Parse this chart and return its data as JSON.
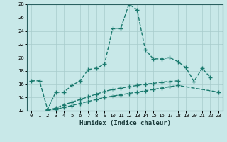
{
  "xlabel": "Humidex (Indice chaleur)",
  "background_color": "#c8e8e8",
  "line_color": "#1a7a6e",
  "xlim": [
    -0.5,
    23.5
  ],
  "ylim": [
    12,
    28
  ],
  "xticks": [
    0,
    1,
    2,
    3,
    4,
    5,
    6,
    7,
    8,
    9,
    10,
    11,
    12,
    13,
    14,
    15,
    16,
    17,
    18,
    19,
    20,
    21,
    22,
    23
  ],
  "yticks": [
    12,
    14,
    16,
    18,
    20,
    22,
    24,
    26,
    28
  ],
  "series1_x": [
    0,
    1,
    2,
    3,
    4,
    5,
    6,
    7,
    8,
    9,
    10,
    11,
    12,
    13,
    14,
    15,
    16,
    17,
    18,
    19,
    20,
    21,
    22
  ],
  "series1_y": [
    16.5,
    16.5,
    12.2,
    14.8,
    14.8,
    15.8,
    16.5,
    18.2,
    18.4,
    19.0,
    24.4,
    24.4,
    28.0,
    27.2,
    21.2,
    19.8,
    19.8,
    20.0,
    19.4,
    18.5,
    16.4,
    18.4,
    17.0
  ],
  "series2_x": [
    2,
    3,
    4,
    5,
    6,
    7,
    8,
    9,
    10,
    11,
    12,
    13,
    14,
    15,
    16,
    17,
    18,
    23
  ],
  "series2_y": [
    12.1,
    12.2,
    12.5,
    12.8,
    13.1,
    13.4,
    13.7,
    14.0,
    14.2,
    14.4,
    14.6,
    14.8,
    15.0,
    15.2,
    15.4,
    15.6,
    15.8,
    14.8
  ],
  "series3_x": [
    2,
    3,
    4,
    5,
    6,
    7,
    8,
    9,
    10,
    11,
    12,
    13,
    14,
    15,
    16,
    17,
    18
  ],
  "series3_y": [
    12.1,
    12.4,
    12.9,
    13.3,
    13.7,
    14.1,
    14.5,
    14.9,
    15.2,
    15.4,
    15.6,
    15.8,
    16.0,
    16.1,
    16.3,
    16.4,
    16.5
  ]
}
